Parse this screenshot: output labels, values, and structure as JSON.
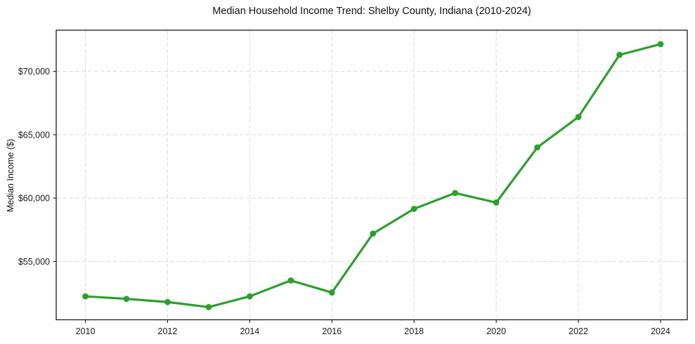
{
  "chart_data": {
    "type": "line",
    "title": "Median Household Income Trend: Shelby County, Indiana (2010-2024)",
    "xlabel": "",
    "ylabel": "Median Income ($)",
    "x": [
      2010,
      2011,
      2012,
      2013,
      2014,
      2015,
      2016,
      2017,
      2018,
      2019,
      2020,
      2021,
      2022,
      2023,
      2024
    ],
    "values": [
      52250,
      52050,
      51800,
      51400,
      52250,
      53500,
      52550,
      57200,
      59150,
      60400,
      59650,
      64000,
      66400,
      71300,
      72150
    ],
    "xlim": [
      2009.29,
      2024.65
    ],
    "ylim": [
      50400,
      73250
    ],
    "xticks": [
      2010,
      2012,
      2014,
      2016,
      2018,
      2020,
      2022,
      2024
    ],
    "xtick_labels": [
      "2010",
      "2012",
      "2014",
      "2016",
      "2018",
      "2020",
      "2022",
      "2024"
    ],
    "yticks": [
      55000,
      60000,
      65000,
      70000
    ],
    "ytick_labels": [
      "$55,000",
      "$60,000",
      "$65,000",
      "$70,000"
    ],
    "grid": true,
    "legend": null,
    "line_color": "#2ca02c",
    "marker_color": "#2ca02c",
    "grid_color": "#d9d9d9",
    "spine_color": "#1a1a1a",
    "tick_label_color": "#1a1a1a",
    "background_color": "#ffffff"
  }
}
